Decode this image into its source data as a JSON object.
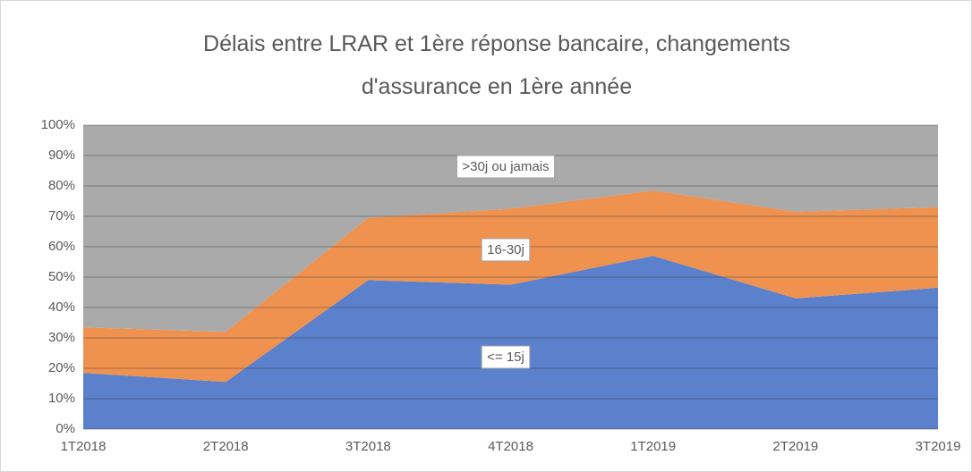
{
  "chart_data": {
    "type": "stacked_area_100",
    "title": "Délais entre LRAR et 1ère réponse bancaire, changements d'assurance en 1ère année",
    "categories": [
      "1T2018",
      "2T2018",
      "3T2018",
      "4T2018",
      "1T2019",
      "2T2019",
      "3T2019"
    ],
    "series": [
      {
        "name": "<= 15j",
        "color": "#5b80cc",
        "values": [
          18.5,
          15.5,
          49,
          47.5,
          57,
          43,
          46.5
        ]
      },
      {
        "name": "16-30j",
        "color": "#ef914f",
        "values": [
          15,
          16.5,
          20.5,
          25,
          21.5,
          28.5,
          26.5
        ]
      },
      {
        "name": ">30j ou jamais",
        "color": "#aaaaaa",
        "values": [
          66.5,
          68,
          30.5,
          27.5,
          21.5,
          28.5,
          27
        ]
      }
    ],
    "ylim": [
      0,
      100
    ],
    "yticks": [
      {
        "value": 0,
        "label": "0%"
      },
      {
        "value": 10,
        "label": "10%"
      },
      {
        "value": 20,
        "label": "20%"
      },
      {
        "value": 30,
        "label": "30%"
      },
      {
        "value": 40,
        "label": "40%"
      },
      {
        "value": 50,
        "label": "50%"
      },
      {
        "value": 60,
        "label": "60%"
      },
      {
        "value": 70,
        "label": "70%"
      },
      {
        "value": 80,
        "label": "80%"
      },
      {
        "value": 90,
        "label": "90%"
      },
      {
        "value": 100,
        "label": "100%"
      }
    ],
    "grid": true
  }
}
